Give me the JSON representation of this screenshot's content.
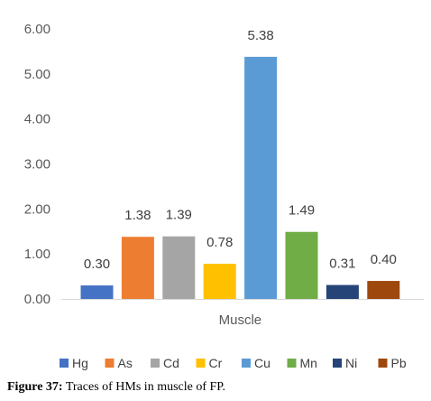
{
  "chart_data": {
    "type": "bar",
    "categories": [
      "Muscle"
    ],
    "series": [
      {
        "name": "Hg",
        "values": [
          0.3
        ],
        "color": "#4472C4"
      },
      {
        "name": "As",
        "values": [
          1.38
        ],
        "color": "#ED7D31"
      },
      {
        "name": "Cd",
        "values": [
          1.39
        ],
        "color": "#A5A5A5"
      },
      {
        "name": "Cr",
        "values": [
          0.78
        ],
        "color": "#FFC000"
      },
      {
        "name": "Cu",
        "values": [
          5.38
        ],
        "color": "#5B9BD5"
      },
      {
        "name": "Mn",
        "values": [
          1.49
        ],
        "color": "#70AD47"
      },
      {
        "name": "Ni",
        "values": [
          0.31
        ],
        "color": "#264478"
      },
      {
        "name": "Pb",
        "values": [
          0.4
        ],
        "color": "#9E480E"
      }
    ],
    "data_labels": [
      "0.30",
      "1.38",
      "1.39",
      "0.78",
      "5.38",
      "1.49",
      "0.31",
      "0.40"
    ],
    "ylim": [
      0,
      6
    ],
    "yticks": [
      "0.00",
      "1.00",
      "2.00",
      "3.00",
      "4.00",
      "5.00",
      "6.00"
    ],
    "grid": false,
    "legend_position": "bottom"
  },
  "caption": {
    "label": "Figure 37:",
    "text": " Traces of HMs in muscle of FP."
  }
}
